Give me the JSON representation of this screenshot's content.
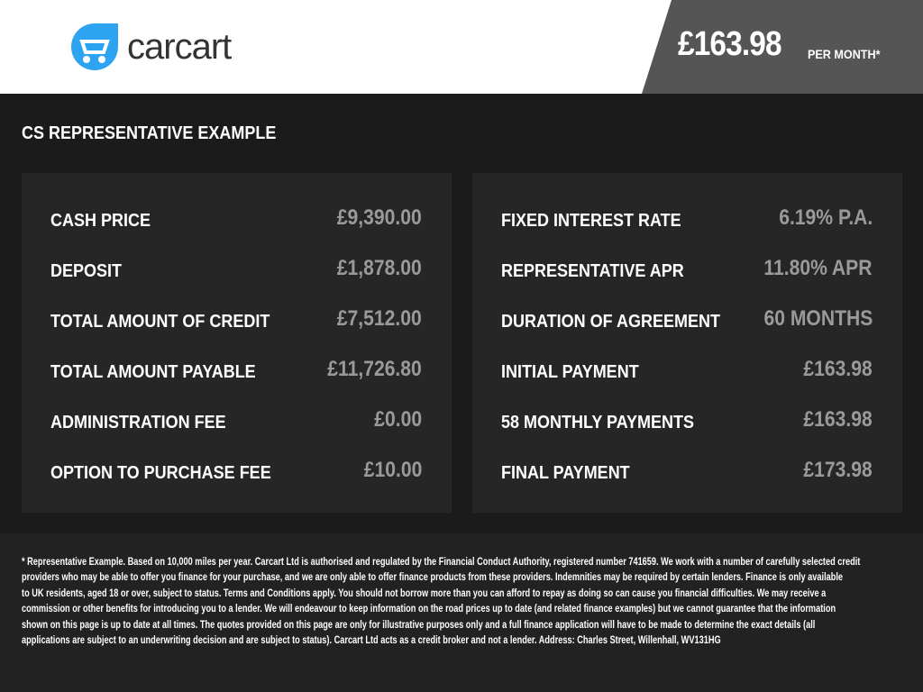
{
  "header": {
    "brand": "carcart",
    "brand_color": "#2ea3f2",
    "price": "£163.98",
    "price_suffix": "PER MONTH*"
  },
  "section_title": "CS REPRESENTATIVE EXAMPLE",
  "left": [
    {
      "label": "CASH PRICE",
      "value": "£9,390.00"
    },
    {
      "label": "DEPOSIT",
      "value": "£1,878.00"
    },
    {
      "label": "TOTAL AMOUNT OF CREDIT",
      "value": "£7,512.00"
    },
    {
      "label": "TOTAL AMOUNT PAYABLE",
      "value": "£11,726.80"
    },
    {
      "label": "ADMINISTRATION FEE",
      "value": "£0.00"
    },
    {
      "label": "OPTION TO PURCHASE FEE",
      "value": "£10.00"
    }
  ],
  "right": [
    {
      "label": "FIXED INTEREST RATE",
      "value": "6.19% P.A."
    },
    {
      "label": "REPRESENTATIVE APR",
      "value": "11.80% APR"
    },
    {
      "label": "DURATION OF AGREEMENT",
      "value": "60 MONTHS"
    },
    {
      "label": "INITIAL PAYMENT",
      "value": "£163.98"
    },
    {
      "label": "58 MONTHLY PAYMENTS",
      "value": "£163.98"
    },
    {
      "label": "FINAL PAYMENT",
      "value": "£173.98"
    }
  ],
  "disclaimer": [
    "* Representative Example. Based on 10,000 miles per year. Carcart Ltd is authorised and regulated by the Financial Conduct Authority, registered number 741659. We work with a number of carefully selected credit",
    "providers who may be able to offer you finance for your purchase, and we are only able to offer finance products from these providers. Indemnities may be required by certain lenders. Finance is only available",
    "to UK residents, aged 18 or over, subject to status. Terms and Conditions apply. You should not borrow more than you can afford to repay as doing so can cause you financial difficulties. We may receive a",
    "commission or other benefits for introducing you to a lender. We will endeavour to keep information on the road prices up to date (and related finance examples) but we cannot guarantee that the information",
    "shown on this page is up to date at all times. The quotes provided on this page are only for illustrative purposes only and a full finance application will have to be made to determine the exact details (all",
    "applications are subject to an underwriting decision and are subject to status). Carcart Ltd acts as a credit broker and not a lender. Address: Charles Street, Willenhall, WV131HG"
  ]
}
